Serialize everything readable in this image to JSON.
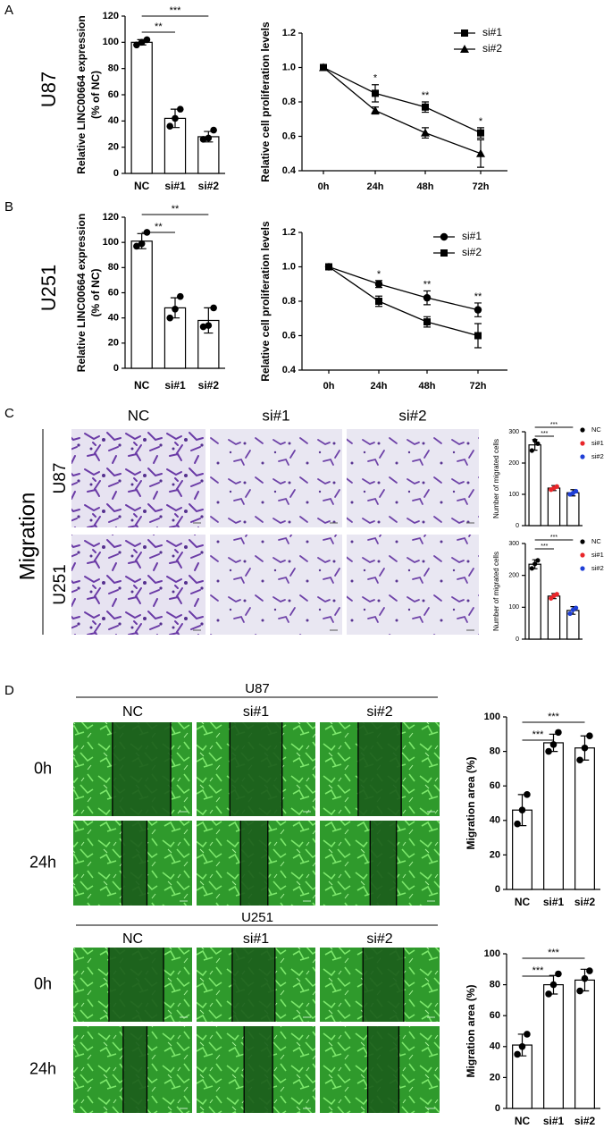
{
  "panel_labels": [
    "A",
    "B",
    "C",
    "D"
  ],
  "row_labels": [
    "U87",
    "U251"
  ],
  "migration": {
    "label": "Migration",
    "columns": [
      "NC",
      "si#1",
      "si#2"
    ],
    "rows": [
      "U87",
      "U251"
    ]
  },
  "wound": [
    {
      "title": "U87",
      "columns": [
        "NC",
        "si#1",
        "si#2"
      ],
      "rows": [
        "0h",
        "24h"
      ]
    },
    {
      "title": "U251",
      "columns": [
        "NC",
        "si#1",
        "si#2"
      ],
      "rows": [
        "0h",
        "24h"
      ]
    }
  ],
  "chart_data": [
    {
      "type": "bar",
      "ylabel": [
        "Relative LINC00664 expression",
        "(% of NC)"
      ],
      "categories": [
        "NC",
        "si#1",
        "si#2"
      ],
      "values": [
        100,
        42,
        28
      ],
      "errors": [
        2,
        7,
        4
      ],
      "points": [
        [
          98,
          102,
          100
        ],
        [
          36,
          49,
          42
        ],
        [
          26,
          33,
          27
        ]
      ],
      "color": "#ffffff",
      "ylim": [
        0,
        120
      ],
      "yticks": [
        0,
        20,
        40,
        60,
        80,
        100,
        120
      ],
      "significance": [
        {
          "label": "**",
          "pair": [
            0,
            1
          ]
        },
        {
          "label": "***",
          "pair": [
            0,
            2
          ]
        }
      ]
    },
    {
      "type": "line",
      "ylabel": "Relative cell proliferation levels",
      "categories": [
        "0h",
        "24h",
        "48h",
        "72h"
      ],
      "series": [
        {
          "name": "si#1",
          "marker": "square",
          "color": "#000000",
          "values": [
            1.0,
            0.85,
            0.77,
            0.62
          ],
          "errors": [
            0,
            0.05,
            0.03,
            0.03
          ]
        },
        {
          "name": "si#2",
          "marker": "triangle",
          "color": "#000000",
          "values": [
            1.0,
            0.75,
            0.62,
            0.5
          ],
          "errors": [
            0,
            0.02,
            0.03,
            0.08
          ]
        }
      ],
      "ylim": [
        0.4,
        1.2
      ],
      "yticks": [
        0.4,
        0.6,
        0.8,
        {
          "value": 1,
          "label": "1.0"
        },
        1.2
      ],
      "significance": [
        {
          "label": "*",
          "index": 1
        },
        {
          "label": "**",
          "index": 2
        },
        {
          "label": "*",
          "index": 3
        }
      ]
    },
    {
      "type": "bar",
      "ylabel": [
        "Relative LINC00664 expression",
        "(% of NC)"
      ],
      "categories": [
        "NC",
        "si#1",
        "si#2"
      ],
      "values": [
        101,
        48,
        38
      ],
      "errors": [
        6,
        8,
        10
      ],
      "points": [
        [
          97,
          108,
          99
        ],
        [
          40,
          57,
          47
        ],
        [
          33,
          48,
          34
        ]
      ],
      "color": "#ffffff",
      "ylim": [
        0,
        120
      ],
      "yticks": [
        0,
        20,
        40,
        60,
        80,
        100,
        120
      ],
      "significance": [
        {
          "label": "**",
          "pair": [
            0,
            1
          ]
        },
        {
          "label": "**",
          "pair": [
            0,
            2
          ]
        }
      ]
    },
    {
      "type": "line",
      "ylabel": "Relative cell proliferation levels",
      "categories": [
        "0h",
        "24h",
        "48h",
        "72h"
      ],
      "series": [
        {
          "name": "si#1",
          "marker": "circle",
          "color": "#000000",
          "values": [
            1.0,
            0.9,
            0.82,
            0.75
          ],
          "errors": [
            0,
            0.02,
            0.04,
            0.04
          ]
        },
        {
          "name": "si#2",
          "marker": "square",
          "color": "#000000",
          "values": [
            1.0,
            0.8,
            0.68,
            0.6
          ],
          "errors": [
            0,
            0.03,
            0.03,
            0.07
          ]
        }
      ],
      "ylim": [
        0.4,
        1.2
      ],
      "yticks": [
        0.4,
        0.6,
        0.8,
        {
          "value": 1,
          "label": "1.0"
        },
        1.2
      ],
      "significance": [
        {
          "label": "*",
          "index": 1
        },
        {
          "label": "**",
          "index": 2
        },
        {
          "label": "**",
          "index": 3
        }
      ]
    },
    {
      "type": "bar",
      "ylabel": "Number of migrated cells",
      "values": [
        258,
        120,
        105
      ],
      "errors": [
        17,
        8,
        10
      ],
      "points": [
        [
          240,
          262,
          272
        ],
        [
          115,
          125,
          120
        ],
        [
          100,
          110,
          104
        ]
      ],
      "color": "#ffffff",
      "point_colors": [
        "#000000",
        "#e8262a",
        "#1f3fd6"
      ],
      "legend": [
        "NC",
        "si#1",
        "si#2"
      ],
      "ylim": [
        0,
        300
      ],
      "yticks": [
        0,
        100,
        200,
        300
      ],
      "significance": [
        {
          "label": "***",
          "pair": [
            0,
            1
          ]
        },
        {
          "label": "***",
          "pair": [
            0,
            2
          ]
        }
      ]
    },
    {
      "type": "bar",
      "ylabel": "Number of migrated cells",
      "values": [
        235,
        135,
        90
      ],
      "errors": [
        14,
        8,
        12
      ],
      "points": [
        [
          222,
          247,
          236
        ],
        [
          128,
          141,
          136
        ],
        [
          80,
          98,
          92
        ]
      ],
      "color": "#ffffff",
      "point_colors": [
        "#000000",
        "#e8262a",
        "#1f3fd6"
      ],
      "legend": [
        "NC",
        "si#1",
        "si#2"
      ],
      "ylim": [
        0,
        300
      ],
      "yticks": [
        0,
        100,
        200,
        300
      ],
      "significance": [
        {
          "label": "***",
          "pair": [
            0,
            1
          ]
        },
        {
          "label": "***",
          "pair": [
            0,
            2
          ]
        }
      ]
    },
    {
      "type": "bar",
      "ylabel": "Migration area (%)",
      "categories": [
        "NC",
        "si#1",
        "si#2"
      ],
      "values": [
        46,
        85,
        82
      ],
      "errors": [
        9,
        5,
        7
      ],
      "points": [
        [
          38,
          55,
          46
        ],
        [
          80,
          91,
          84
        ],
        [
          75,
          89,
          82
        ]
      ],
      "color": "#ffffff",
      "ylim": [
        0,
        100
      ],
      "yticks": [
        0,
        20,
        40,
        60,
        80,
        100
      ],
      "significance": [
        {
          "label": "***",
          "pair": [
            0,
            1
          ]
        },
        {
          "label": "***",
          "pair": [
            0,
            2
          ]
        }
      ]
    },
    {
      "type": "bar",
      "ylabel": "Migration area (%)",
      "categories": [
        "NC",
        "si#1",
        "si#2"
      ],
      "values": [
        41,
        80,
        83
      ],
      "errors": [
        7,
        6,
        7
      ],
      "points": [
        [
          35,
          48,
          40
        ],
        [
          74,
          87,
          80
        ],
        [
          76,
          89,
          84
        ]
      ],
      "color": "#ffffff",
      "ylim": [
        0,
        100
      ],
      "yticks": [
        0,
        20,
        40,
        60,
        80,
        100
      ],
      "significance": [
        {
          "label": "***",
          "pair": [
            0,
            1
          ]
        },
        {
          "label": "***",
          "pair": [
            0,
            2
          ]
        }
      ]
    }
  ]
}
